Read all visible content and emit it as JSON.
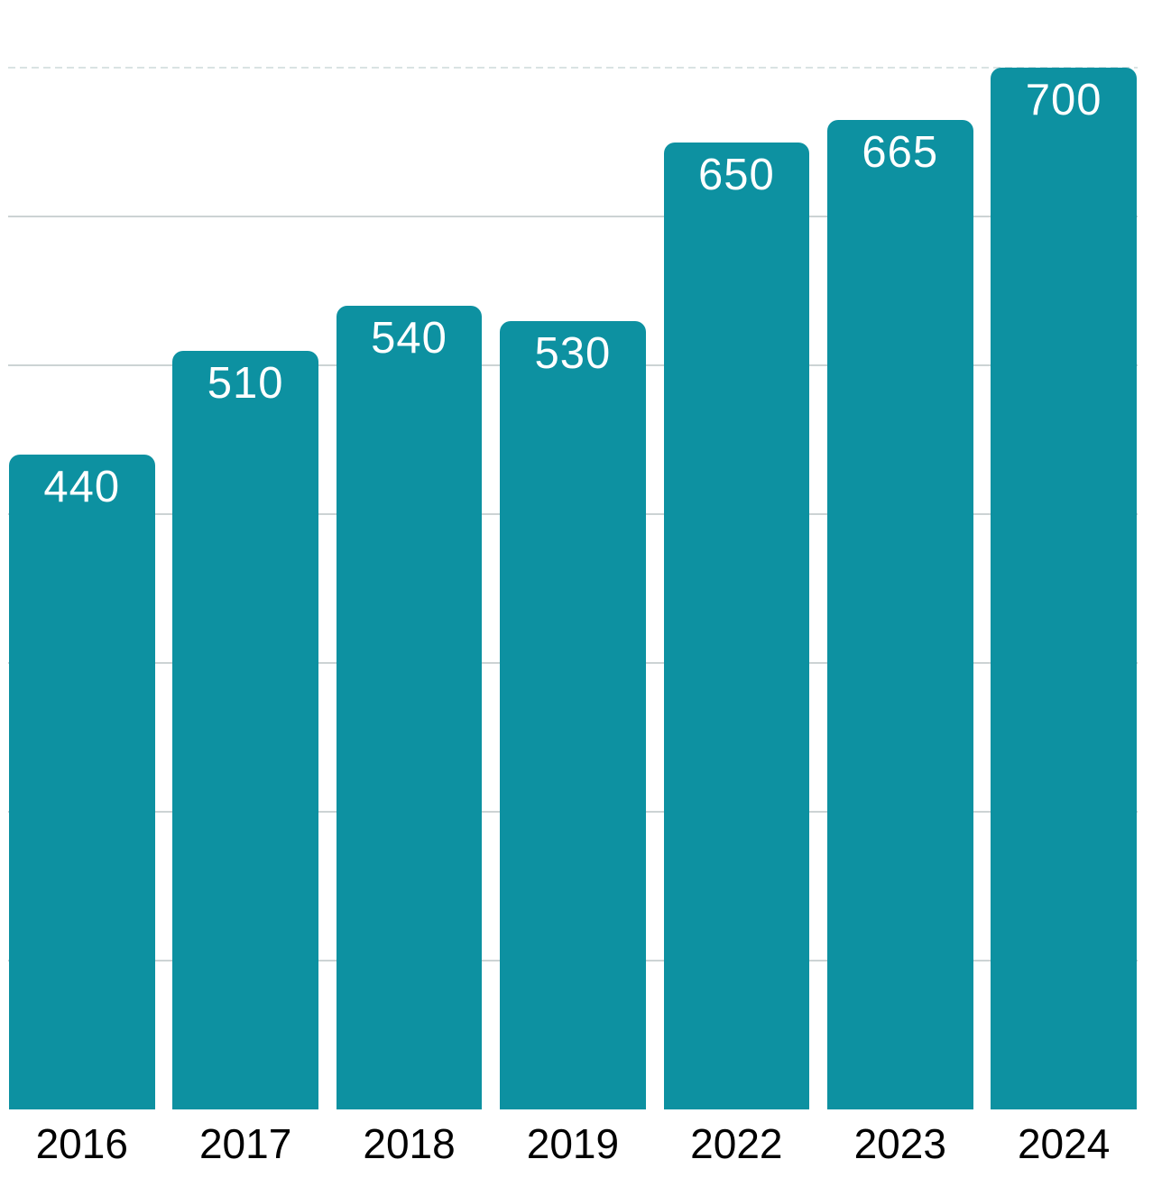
{
  "chart_data": {
    "type": "bar",
    "categories": [
      "2016",
      "2017",
      "2018",
      "2019",
      "2022",
      "2023",
      "2024"
    ],
    "values": [
      440,
      510,
      540,
      530,
      650,
      665,
      700
    ],
    "title": "",
    "xlabel": "",
    "ylabel": "",
    "ylim": [
      0,
      745
    ],
    "grid": "horizontal",
    "legend_position": "none",
    "gridline_values": [
      100,
      200,
      300,
      400,
      500,
      600
    ],
    "dashed_gridline_value": 700,
    "bar_color": "#0D91A1",
    "value_label_color": "#ffffff",
    "category_label_color": "#000000",
    "gridline_color": "#ccd3d4",
    "dashed_gridline_color": "#d9e3e3",
    "background_color": "#ffffff"
  }
}
